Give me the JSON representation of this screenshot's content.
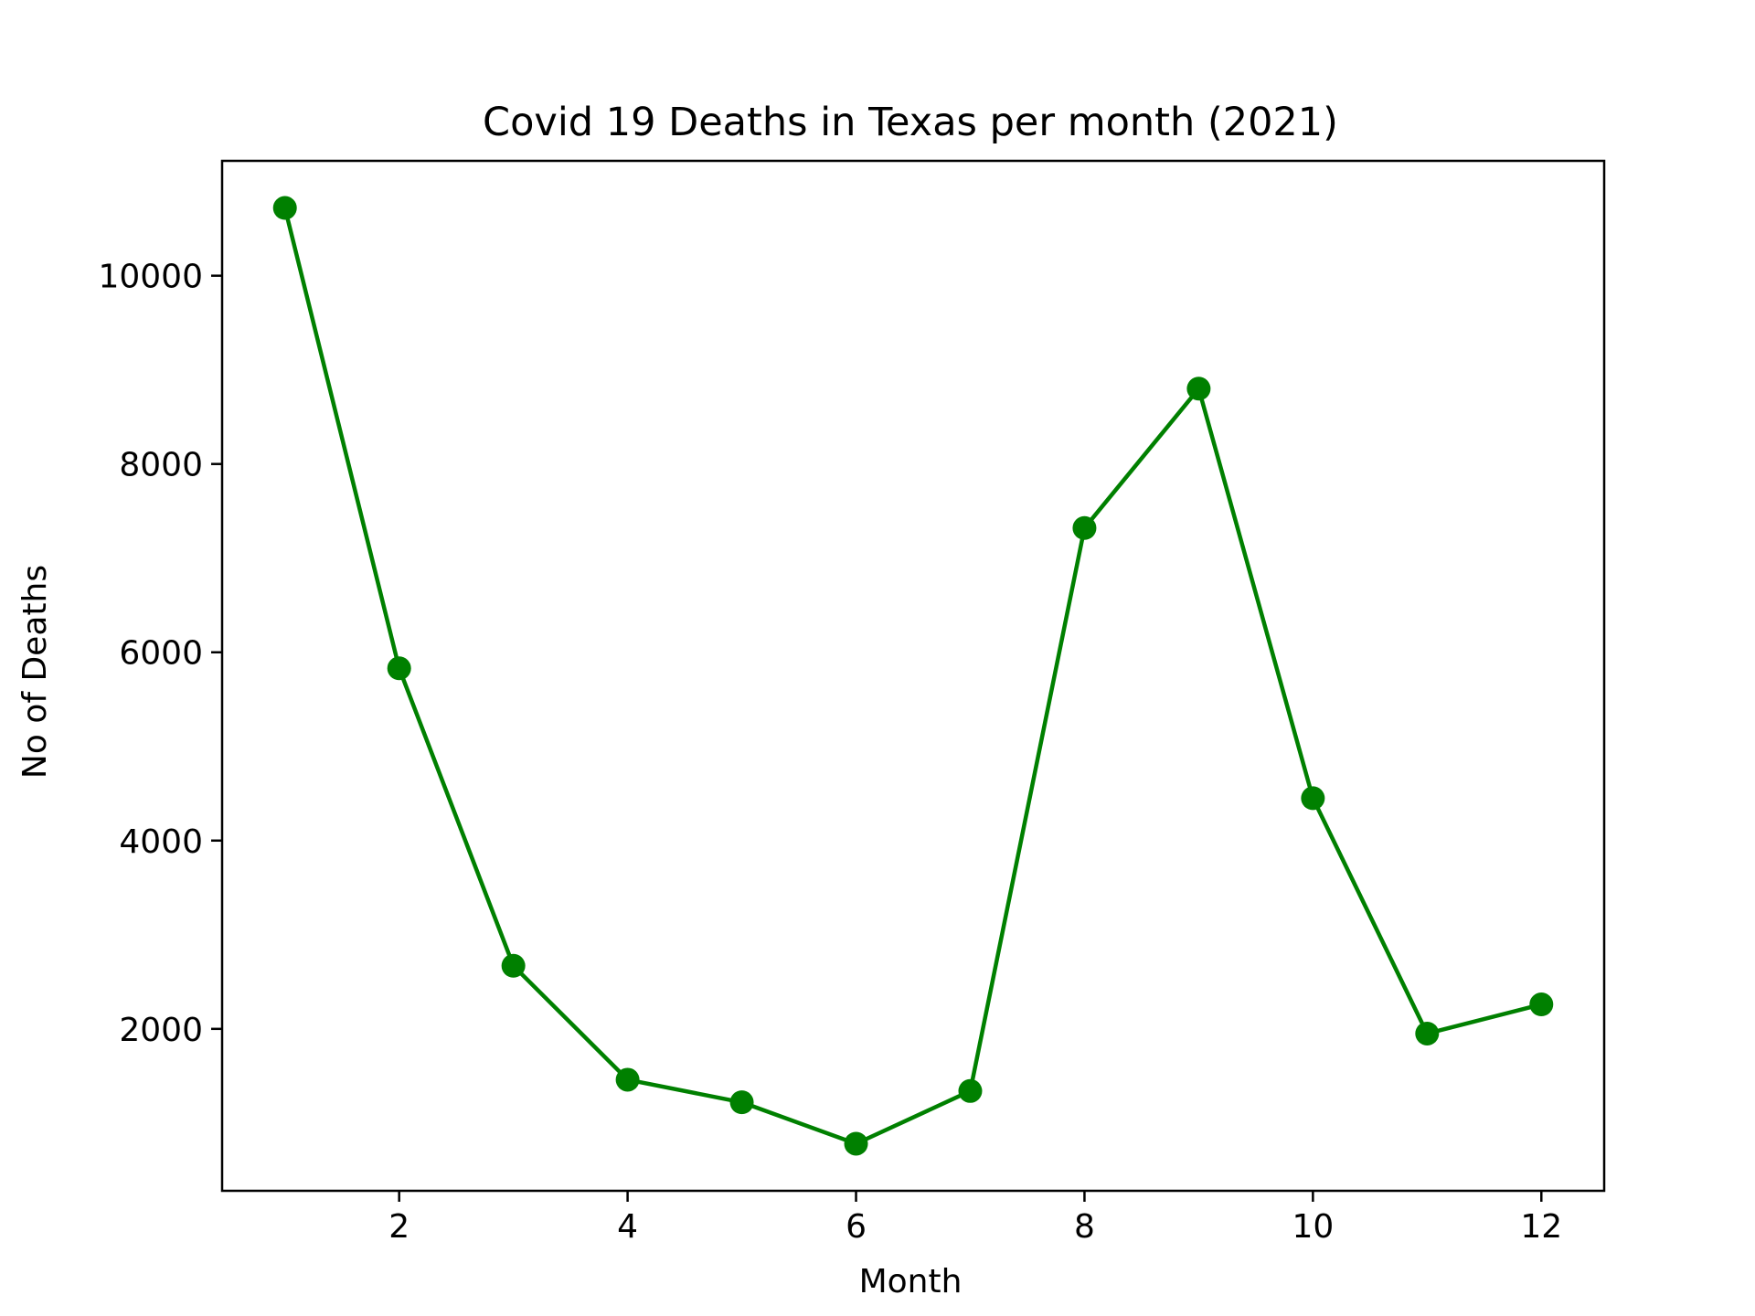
{
  "chart_data": {
    "type": "line",
    "title": "Covid 19 Deaths in Texas per month (2021)",
    "xlabel": "Month",
    "ylabel": "No of Deaths",
    "x": [
      1,
      2,
      3,
      4,
      5,
      6,
      7,
      8,
      9,
      10,
      11,
      12
    ],
    "series": [
      {
        "values": [
          10720,
          5830,
          2670,
          1460,
          1220,
          780,
          1340,
          7320,
          8800,
          4450,
          1950,
          2260
        ],
        "color": "#008000",
        "marker": "circle"
      }
    ],
    "xlim": [
      0.45,
      12.55
    ],
    "ylim": [
      280,
      11220
    ],
    "xticks": [
      2,
      4,
      6,
      8,
      10,
      12
    ],
    "yticks": [
      2000,
      4000,
      6000,
      8000,
      10000
    ],
    "grid": false,
    "legend": "none"
  }
}
